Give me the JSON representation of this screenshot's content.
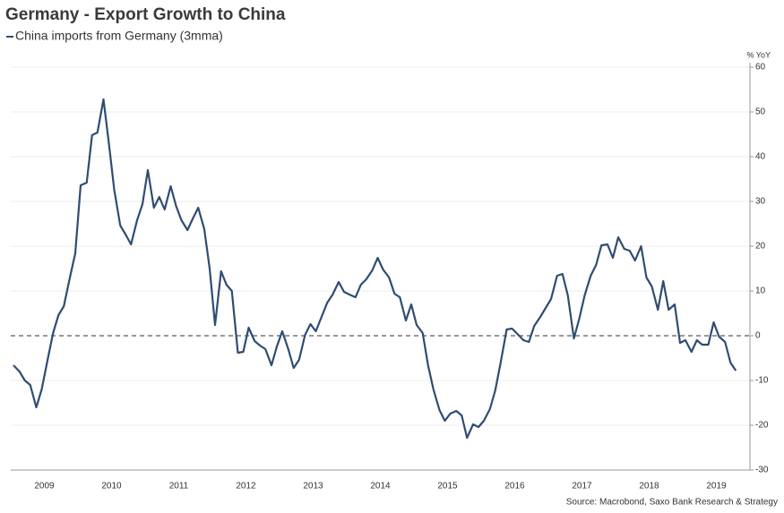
{
  "chart_data": {
    "type": "line",
    "title": "Germany - Export Growth to China",
    "y_axis_label": "% YoY",
    "source": "Source: Macrobond, Saxo Bank Research & Strategy",
    "series": [
      {
        "name": "China imports from Germany (3mma)",
        "color": "#2e4d72",
        "values": [
          -6.6,
          -8,
          -10,
          -11,
          -16,
          -12,
          -6,
          0.6,
          4.6,
          6.6,
          13,
          18.4,
          33.6,
          34.2,
          44.8,
          45.4,
          52.8,
          43,
          32.6,
          24.6,
          22.6,
          20.4,
          25.8,
          29.4,
          37,
          28.6,
          31,
          28.2,
          33.4,
          29,
          25.8,
          23.6,
          26.2,
          28.6,
          23.8,
          15,
          2.4,
          14.4,
          11.4,
          10,
          -3.8,
          -3.6,
          1.8,
          -1.2,
          -2.2,
          -3,
          -6.6,
          -2.4,
          1,
          -3,
          -7.2,
          -5.4,
          0.2,
          2.6,
          1,
          4.4,
          7.4,
          9.2,
          12,
          9.8,
          9.2,
          8.6,
          11.4,
          12.6,
          14.6,
          17.4,
          14.8,
          13,
          9.4,
          8.6,
          3.4,
          7,
          2.4,
          0.6,
          -6.6,
          -12,
          -16.6,
          -19,
          -17.4,
          -16.8,
          -17.8,
          -22.8,
          -19.8,
          -20.4,
          -19,
          -16.4,
          -12.2,
          -6,
          1.4,
          1.6,
          0.4,
          -1,
          -1.4,
          2.2,
          4.2,
          6.2,
          8.2,
          13.4,
          13.8,
          9,
          -0.6,
          3.8,
          9,
          13.4,
          15.8,
          20.2,
          20.4,
          17.4,
          22,
          19.4,
          19,
          16.8,
          20,
          13,
          11,
          5.8,
          12.2,
          5.8,
          7,
          -1.6,
          -1,
          -3.6,
          -1,
          -2,
          -2,
          3,
          -0.2,
          -1.4,
          -6,
          -7.8
        ]
      }
    ],
    "x": [
      2009.04,
      2009.13,
      2009.21,
      2009.29,
      2009.38,
      2009.46,
      2009.54,
      2009.63,
      2009.71,
      2009.79,
      2009.88,
      2009.96,
      2010.04,
      2010.13,
      2010.21,
      2010.29,
      2010.38,
      2010.46,
      2010.54,
      2010.63,
      2010.71,
      2010.79,
      2010.88,
      2010.96,
      2011.04,
      2011.13,
      2011.21,
      2011.29,
      2011.38,
      2011.46,
      2011.54,
      2011.63,
      2011.71,
      2011.79,
      2011.88,
      2011.96,
      2012.04,
      2012.13,
      2012.21,
      2012.29,
      2012.38,
      2012.46,
      2012.54,
      2012.63,
      2012.71,
      2012.79,
      2012.88,
      2012.96,
      2013.04,
      2013.13,
      2013.21,
      2013.29,
      2013.38,
      2013.46,
      2013.54,
      2013.63,
      2013.71,
      2013.79,
      2013.88,
      2013.96,
      2014.04,
      2014.13,
      2014.21,
      2014.29,
      2014.38,
      2014.46,
      2014.54,
      2014.63,
      2014.71,
      2014.79,
      2014.88,
      2014.96,
      2015.04,
      2015.13,
      2015.21,
      2015.29,
      2015.38,
      2015.46,
      2015.54,
      2015.63,
      2015.71,
      2015.79,
      2015.88,
      2015.96,
      2016.04,
      2016.13,
      2016.21,
      2016.29,
      2016.38,
      2016.46,
      2016.54,
      2016.63,
      2016.71,
      2016.79,
      2016.88,
      2016.96,
      2017.04,
      2017.13,
      2017.21,
      2017.29,
      2017.38,
      2017.46,
      2017.54,
      2017.63,
      2017.71,
      2017.79,
      2017.88,
      2017.96,
      2018.04,
      2018.13,
      2018.21,
      2018.29,
      2018.38,
      2018.46,
      2018.54,
      2018.63,
      2018.71,
      2018.79,
      2018.88,
      2018.96,
      2019.04,
      2019.13,
      2019.21,
      2019.29,
      2019.38,
      2019.46,
      2019.54,
      2019.63,
      2019.71,
      2019.79
    ],
    "xlim": [
      2009,
      2020
    ],
    "xticks": [
      {
        "value": 2009.5,
        "label": "2009"
      },
      {
        "value": 2010.5,
        "label": "2010"
      },
      {
        "value": 2011.5,
        "label": "2011"
      },
      {
        "value": 2012.5,
        "label": "2012"
      },
      {
        "value": 2013.5,
        "label": "2013"
      },
      {
        "value": 2014.5,
        "label": "2014"
      },
      {
        "value": 2015.5,
        "label": "2015"
      },
      {
        "value": 2016.5,
        "label": "2016"
      },
      {
        "value": 2017.5,
        "label": "2017"
      },
      {
        "value": 2018.5,
        "label": "2018"
      },
      {
        "value": 2019.5,
        "label": "2019"
      }
    ],
    "ylim": [
      -30,
      60
    ],
    "yticks": [
      -30,
      -20,
      -10,
      0,
      10,
      20,
      30,
      40,
      50,
      60
    ],
    "grid": true
  }
}
